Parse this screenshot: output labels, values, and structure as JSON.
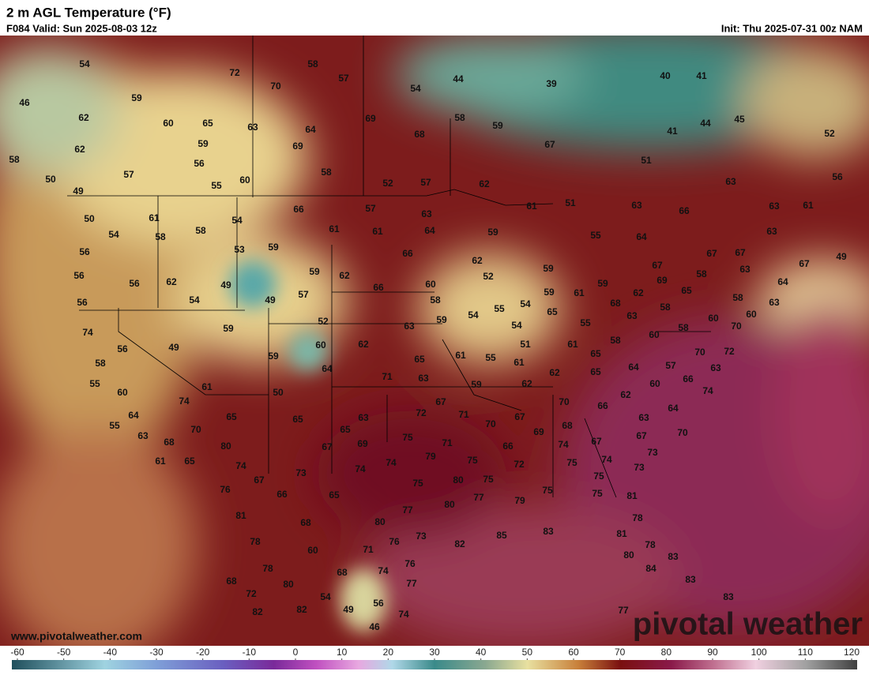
{
  "header": {
    "title": "2 m AGL Temperature (°F)",
    "valid": "F084 Valid: Sun 2025-08-03 12z",
    "init": "Init: Thu 2025-07-31 00z NAM"
  },
  "watermark": "pivotal weather",
  "website": "www.pivotalweather.com",
  "colorbar": {
    "ticks": [
      -60,
      -50,
      -40,
      -30,
      -20,
      -10,
      0,
      10,
      20,
      30,
      40,
      50,
      60,
      70,
      80,
      90,
      100,
      110,
      120
    ]
  },
  "labels": [
    54,
    46,
    62,
    62,
    59,
    60,
    65,
    63,
    59,
    56,
    57,
    55,
    60,
    72,
    58,
    57,
    70,
    54,
    44,
    39,
    40,
    41,
    64,
    69,
    69,
    68,
    58,
    59,
    67,
    44,
    45,
    52,
    41,
    51,
    58,
    52,
    57,
    62,
    63,
    56,
    58,
    50,
    49,
    50,
    61,
    54,
    58,
    58,
    54,
    66,
    57,
    63,
    61,
    61,
    64,
    51,
    61,
    63,
    66,
    63,
    61,
    56,
    53,
    59,
    66,
    59,
    55,
    64,
    63,
    67,
    67,
    49,
    56,
    56,
    62,
    49,
    59,
    62,
    66,
    60,
    62,
    52,
    59,
    59,
    61,
    62,
    69,
    67,
    58,
    65,
    63,
    67,
    64,
    56,
    54,
    49,
    57,
    58,
    54,
    59,
    68,
    58,
    58,
    63,
    74,
    59,
    52,
    63,
    59,
    54,
    55,
    54,
    65,
    55,
    63,
    58,
    60,
    60,
    56,
    49,
    60,
    62,
    51,
    61,
    58,
    60,
    70,
    58,
    59,
    64,
    71,
    65,
    63,
    61,
    55,
    61,
    62,
    65,
    65,
    64,
    57,
    70,
    63,
    72,
    55,
    61,
    59,
    62,
    66,
    60,
    60,
    74,
    50,
    70,
    66,
    62,
    64,
    74,
    64,
    65,
    65,
    63,
    67,
    72,
    71,
    67,
    63,
    55,
    70,
    65,
    70,
    68,
    69,
    70,
    63,
    68,
    80,
    67,
    69,
    75,
    71,
    66,
    67,
    67,
    61,
    65,
    74,
    73,
    74,
    74,
    79,
    75,
    72,
    74,
    75,
    74,
    73,
    73,
    67,
    76,
    66,
    65,
    75,
    80,
    75,
    75,
    81,
    77,
    79,
    75,
    75,
    81,
    68,
    80,
    77,
    80,
    78,
    78,
    76,
    73,
    82,
    85,
    83,
    81,
    78,
    60,
    71,
    78,
    68,
    74,
    76,
    80,
    84,
    83,
    68,
    80,
    77,
    83,
    72,
    54,
    56,
    82,
    82,
    49,
    74,
    77,
    83,
    46
  ]
}
